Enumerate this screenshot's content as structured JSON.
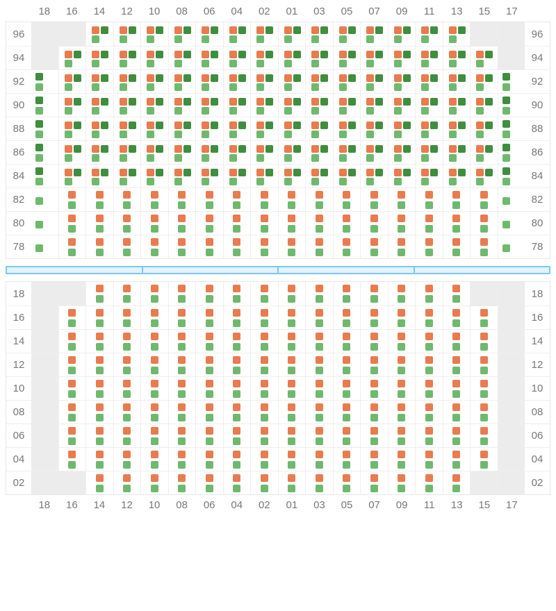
{
  "colors": {
    "orange": "#e97b4f",
    "dark_green": "#3f8e3f",
    "light_green": "#6fb96f",
    "cell_border": "#eeeeee",
    "empty_cell": "#ececec",
    "label_text": "#777777",
    "divider_fill": "#e0f3ff",
    "divider_border": "#7fc5f0"
  },
  "columns": [
    "18",
    "16",
    "14",
    "12",
    "10",
    "08",
    "06",
    "04",
    "02",
    "01",
    "03",
    "05",
    "07",
    "09",
    "11",
    "13",
    "15",
    "17"
  ],
  "top_section": {
    "rows": [
      {
        "label": "96",
        "cells": [
          "empty",
          "empty",
          "B",
          "B",
          "B",
          "B",
          "B",
          "B",
          "B",
          "B",
          "B",
          "B",
          "B",
          "B",
          "B",
          "B",
          "empty",
          "empty"
        ]
      },
      {
        "label": "94",
        "cells": [
          "empty",
          "B",
          "B",
          "B",
          "B",
          "B",
          "B",
          "B",
          "B",
          "B",
          "B",
          "B",
          "B",
          "B",
          "B",
          "B",
          "B",
          "empty"
        ]
      },
      {
        "label": "92",
        "cells": [
          "D",
          "B",
          "B",
          "B",
          "B",
          "B",
          "B",
          "B",
          "B",
          "B",
          "B",
          "B",
          "B",
          "B",
          "B",
          "B",
          "B",
          "D"
        ]
      },
      {
        "label": "90",
        "cells": [
          "D",
          "B",
          "B",
          "B",
          "B",
          "B",
          "B",
          "B",
          "B",
          "B",
          "B",
          "B",
          "B",
          "B",
          "B",
          "B",
          "B",
          "D"
        ]
      },
      {
        "label": "88",
        "cells": [
          "D",
          "B",
          "B",
          "B",
          "B",
          "B",
          "B",
          "B",
          "B",
          "B",
          "B",
          "B",
          "B",
          "B",
          "B",
          "B",
          "B",
          "D"
        ]
      },
      {
        "label": "86",
        "cells": [
          "D",
          "B",
          "B",
          "B",
          "B",
          "B",
          "B",
          "B",
          "B",
          "B",
          "B",
          "B",
          "B",
          "B",
          "B",
          "B",
          "B",
          "D"
        ]
      },
      {
        "label": "84",
        "cells": [
          "D",
          "B",
          "B",
          "B",
          "B",
          "B",
          "B",
          "B",
          "B",
          "B",
          "B",
          "B",
          "B",
          "B",
          "B",
          "B",
          "B",
          "D"
        ]
      },
      {
        "label": "82",
        "cells": [
          "E",
          "C",
          "C",
          "C",
          "C",
          "C",
          "C",
          "C",
          "C",
          "C",
          "C",
          "C",
          "C",
          "C",
          "C",
          "C",
          "C",
          "E"
        ]
      },
      {
        "label": "80",
        "cells": [
          "E",
          "C",
          "C",
          "C",
          "C",
          "C",
          "C",
          "C",
          "C",
          "C",
          "C",
          "C",
          "C",
          "C",
          "C",
          "C",
          "C",
          "E"
        ]
      },
      {
        "label": "78",
        "cells": [
          "E",
          "C",
          "C",
          "C",
          "C",
          "C",
          "C",
          "C",
          "C",
          "C",
          "C",
          "C",
          "C",
          "C",
          "C",
          "C",
          "C",
          "E"
        ]
      }
    ]
  },
  "divider_bars": 4,
  "bottom_section": {
    "rows": [
      {
        "label": "18",
        "cells": [
          "empty",
          "empty",
          "C",
          "C",
          "C",
          "C",
          "C",
          "C",
          "C",
          "C",
          "C",
          "C",
          "C",
          "C",
          "C",
          "C",
          "empty",
          "empty"
        ]
      },
      {
        "label": "16",
        "cells": [
          "empty",
          "C",
          "C",
          "C",
          "C",
          "C",
          "C",
          "C",
          "C",
          "C",
          "C",
          "C",
          "C",
          "C",
          "C",
          "C",
          "C",
          "empty"
        ]
      },
      {
        "label": "14",
        "cells": [
          "empty",
          "C",
          "C",
          "C",
          "C",
          "C",
          "C",
          "C",
          "C",
          "C",
          "C",
          "C",
          "C",
          "C",
          "C",
          "C",
          "C",
          "empty"
        ]
      },
      {
        "label": "12",
        "cells": [
          "empty",
          "C",
          "C",
          "C",
          "C",
          "C",
          "C",
          "C",
          "C",
          "C",
          "C",
          "C",
          "C",
          "C",
          "C",
          "C",
          "C",
          "empty"
        ]
      },
      {
        "label": "10",
        "cells": [
          "empty",
          "C",
          "C",
          "C",
          "C",
          "C",
          "C",
          "C",
          "C",
          "C",
          "C",
          "C",
          "C",
          "C",
          "C",
          "C",
          "C",
          "empty"
        ]
      },
      {
        "label": "08",
        "cells": [
          "empty",
          "C",
          "C",
          "C",
          "C",
          "C",
          "C",
          "C",
          "C",
          "C",
          "C",
          "C",
          "C",
          "C",
          "C",
          "C",
          "C",
          "empty"
        ]
      },
      {
        "label": "06",
        "cells": [
          "empty",
          "C",
          "C",
          "C",
          "C",
          "C",
          "C",
          "C",
          "C",
          "C",
          "C",
          "C",
          "C",
          "C",
          "C",
          "C",
          "C",
          "empty"
        ]
      },
      {
        "label": "04",
        "cells": [
          "empty",
          "C",
          "C",
          "C",
          "C",
          "C",
          "C",
          "C",
          "C",
          "C",
          "C",
          "C",
          "C",
          "C",
          "C",
          "C",
          "C",
          "empty"
        ]
      },
      {
        "label": "02",
        "cells": [
          "empty",
          "empty",
          "C",
          "C",
          "C",
          "C",
          "C",
          "C",
          "C",
          "C",
          "C",
          "C",
          "C",
          "C",
          "C",
          "C",
          "empty",
          "empty"
        ]
      }
    ]
  }
}
